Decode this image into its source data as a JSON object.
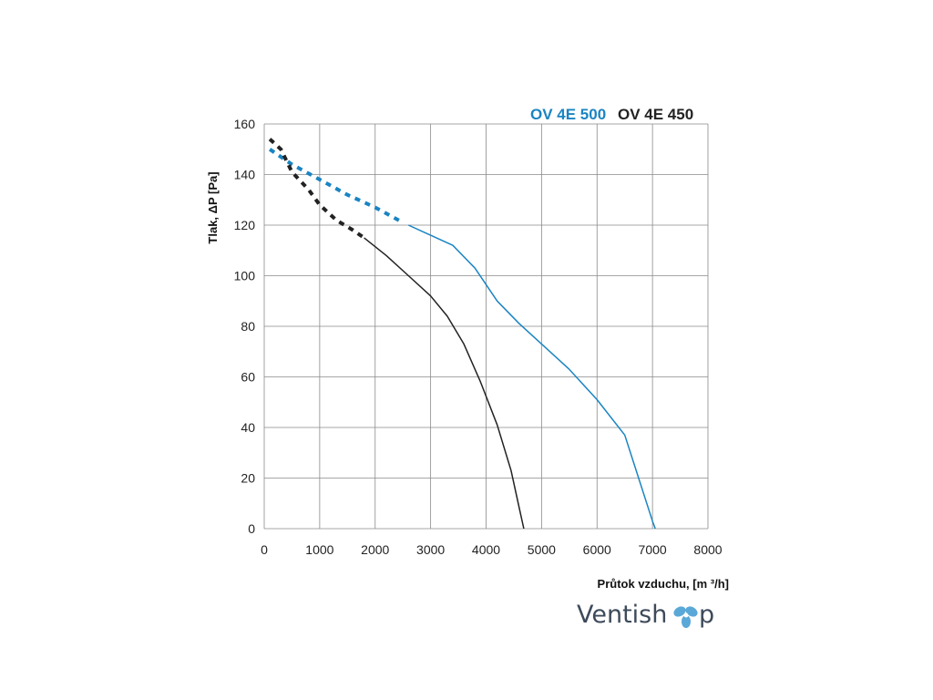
{
  "chart_data": {
    "type": "line",
    "xlabel": "Průtok vzduchu, [m ³/h]",
    "ylabel": "Tlak, ΔP [Pa]",
    "xlim": [
      0,
      8000
    ],
    "ylim": [
      0,
      160
    ],
    "x_ticks": [
      "0",
      "1000",
      "2000",
      "3000",
      "4000",
      "5000",
      "6000",
      "7000",
      "8000"
    ],
    "y_ticks": [
      "0",
      "20",
      "40",
      "60",
      "80",
      "100",
      "120",
      "140",
      "160"
    ],
    "grid": true,
    "legend_position": "top-right",
    "series": [
      {
        "name": "OV 4E 500",
        "color": "#1a84c2",
        "dashed_segment": [
          [
            100,
            150
          ],
          [
            500,
            144
          ],
          [
            1000,
            138
          ],
          [
            1500,
            132
          ],
          [
            2000,
            127
          ],
          [
            2500,
            121
          ]
        ],
        "solid_segment": [
          [
            2600,
            120
          ],
          [
            3000,
            116
          ],
          [
            3400,
            112
          ],
          [
            3800,
            103
          ],
          [
            4200,
            90
          ],
          [
            4600,
            81
          ],
          [
            5000,
            73
          ],
          [
            5500,
            63
          ],
          [
            6000,
            51
          ],
          [
            6500,
            37
          ],
          [
            7000,
            3
          ],
          [
            7050,
            0
          ]
        ]
      },
      {
        "name": "OV 4E 450",
        "color": "#222222",
        "dashed_segment": [
          [
            100,
            154
          ],
          [
            300,
            150
          ],
          [
            500,
            141
          ],
          [
            800,
            134
          ],
          [
            1000,
            128
          ],
          [
            1300,
            122
          ],
          [
            1600,
            118
          ],
          [
            1800,
            115
          ]
        ],
        "solid_segment": [
          [
            1800,
            115
          ],
          [
            2200,
            108
          ],
          [
            2600,
            100
          ],
          [
            3000,
            92
          ],
          [
            3300,
            84
          ],
          [
            3600,
            73
          ],
          [
            3900,
            58
          ],
          [
            4200,
            41
          ],
          [
            4450,
            23
          ],
          [
            4600,
            8
          ],
          [
            4680,
            0
          ]
        ]
      }
    ]
  },
  "brand": {
    "text_start": "Ventish",
    "text_end": "p",
    "icon": "fan-icon"
  }
}
